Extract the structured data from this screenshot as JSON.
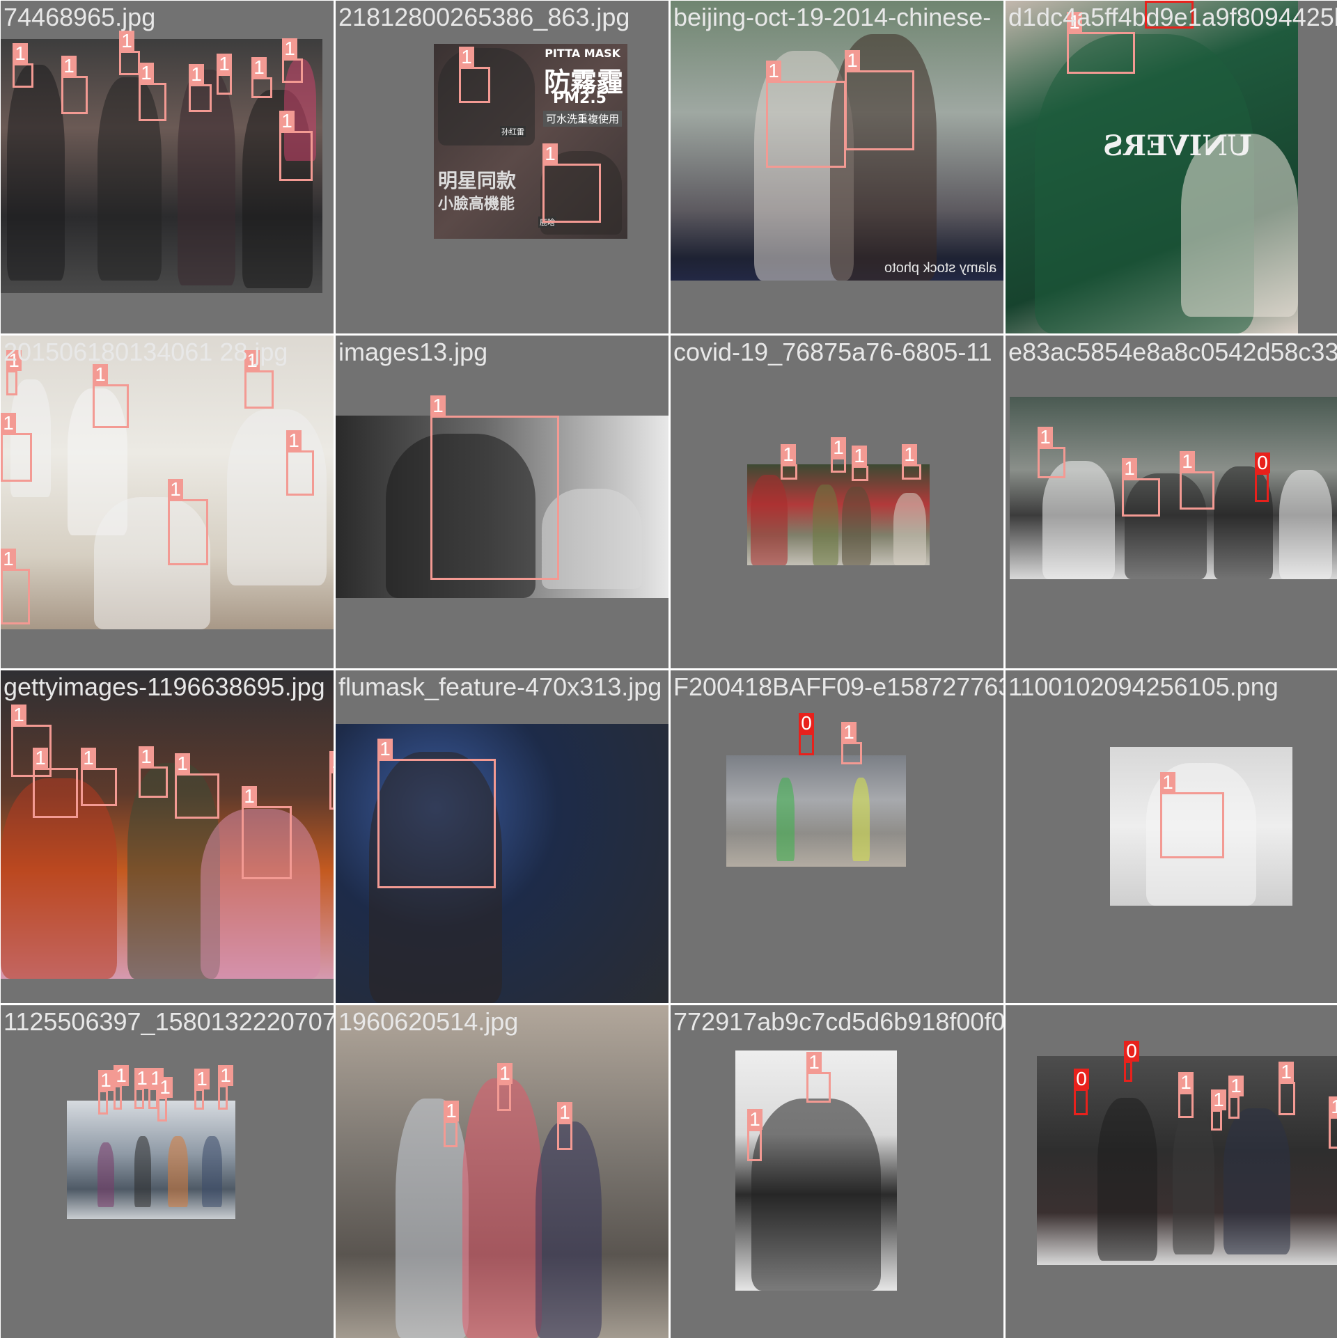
{
  "tiles": [
    {
      "filename": "74468965.jpg",
      "theme": "p-street",
      "boxes": [
        "1",
        "1",
        "1",
        "1",
        "1",
        "1",
        "1",
        "1",
        "1",
        "1"
      ]
    },
    {
      "filename": "21812800265386_863.jpg",
      "theme": "p-poster",
      "poster": {
        "brand": "PITTA MASK",
        "headline": "防霧霾",
        "sub": "PM2.5",
        "note": "可水洗重複使用",
        "tagline1": "明星同款",
        "tagline2": "小臉高機能",
        "sticker1": "孙红雷",
        "sticker2": "鹿晗"
      },
      "boxes": [
        "1",
        "1"
      ]
    },
    {
      "filename": "beijing-oct-19-2014-chinese-",
      "theme": "p-beijing",
      "watermark": "alamy stock photo",
      "boxes": [
        "1",
        "1"
      ]
    },
    {
      "filename": "d1dc4a5ff4bd9e1a9f8094425bbccbfb",
      "theme": "p-green",
      "shirt": "UNIVERS",
      "boxes": [
        "1",
        "0"
      ]
    },
    {
      "filename": "201506180134061 28.jpg",
      "theme": "p-class",
      "boxes": [
        "1",
        "1",
        "1",
        "1",
        "1",
        "1",
        "1"
      ]
    },
    {
      "filename": "images13.jpg",
      "theme": "p-macron",
      "boxes": [
        "1"
      ]
    },
    {
      "filename": "covid-19_76875a76-6805-11",
      "theme": "p-covid",
      "boxes": [
        "1",
        "1",
        "1",
        "1"
      ]
    },
    {
      "filename": "e83ac5854e8a8c0542d58c3321b",
      "theme": "p-city",
      "boxes": [
        "1",
        "1",
        "1",
        "0"
      ]
    },
    {
      "filename": "gettyimages-1196638695.jpg",
      "theme": "p-getty",
      "boxes": [
        "1",
        "1",
        "1",
        "1",
        "1",
        "1",
        "1"
      ]
    },
    {
      "filename": "flumask_feature-470x313.jpg",
      "theme": "p-flumask",
      "boxes": [
        "1"
      ]
    },
    {
      "filename": "F200418BAFF09-e1587277632703.jpg",
      "theme": "p-police",
      "boxes": [
        "0",
        "1"
      ]
    },
    {
      "filename": "1100102094256105.png",
      "theme": "p-girl",
      "boxes": [
        "1"
      ]
    },
    {
      "filename": "1125506397_15801322207071.jpg",
      "theme": "p-airport",
      "boxes": [
        "1",
        "1",
        "1",
        "1",
        "1",
        "1",
        "1"
      ]
    },
    {
      "filename": "1960620514.jpg",
      "theme": "p-pajama",
      "boxes": [
        "1",
        "1",
        "1"
      ]
    },
    {
      "filename": "772917ab9c7cd5d6b918f00f0682f94154961312d812a3a",
      "theme": "p-coat",
      "boxes": [
        "1",
        "1"
      ]
    },
    {
      "filename": "",
      "theme": "p-station",
      "boxes": [
        "0",
        "0",
        "1",
        "1",
        "1",
        "1",
        "1"
      ]
    }
  ]
}
